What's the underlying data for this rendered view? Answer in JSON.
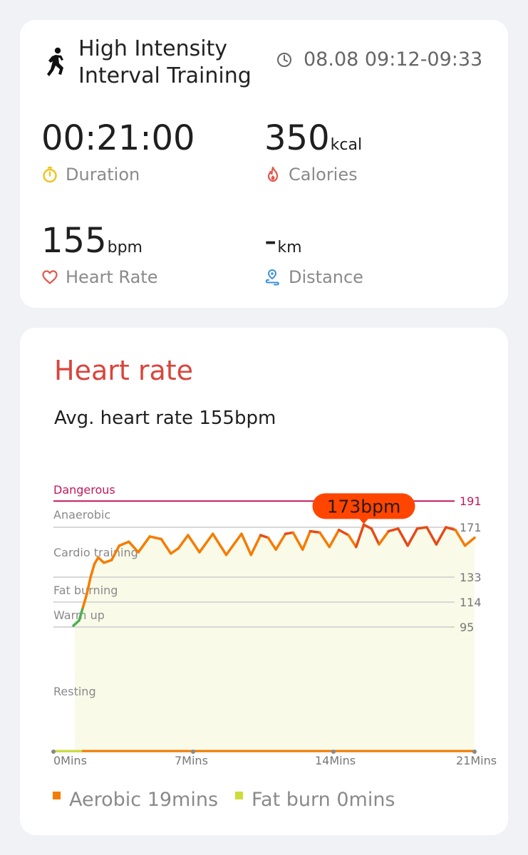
{
  "workout": {
    "title_line1": "High Intensity",
    "title_line2": "Interval Training",
    "icon": "person-running-icon",
    "time_icon": "clock-icon",
    "time_range": "08.08 09:12-09:33"
  },
  "stats": {
    "duration": {
      "value": "00:21:00",
      "unit": "",
      "label": "Duration",
      "icon": "stopwatch-icon",
      "color": "#f2c21b"
    },
    "calories": {
      "value": "350",
      "unit": "kcal",
      "label": "Calories",
      "icon": "flame-icon",
      "color": "#e2574c"
    },
    "heart_rate": {
      "value": "155",
      "unit": "bpm",
      "label": "Heart Rate",
      "icon": "heart-icon",
      "color": "#e2574c"
    },
    "distance": {
      "value": "-",
      "unit": "km",
      "label": "Distance",
      "icon": "route-pin-icon",
      "color": "#3d8fe0"
    }
  },
  "heart_rate_section": {
    "title": "Heart rate",
    "title_color": "#d9453c",
    "avg_text": "Avg. heart rate 155bpm",
    "peak_label": "173bpm",
    "peak_color": "#ff4500"
  },
  "legend": [
    {
      "label": "Aerobic 19mins",
      "color": "#f57c00"
    },
    {
      "label": "Fat burn 0mins",
      "color": "#cddc39"
    }
  ],
  "chart_data": {
    "type": "line",
    "x_unit": "minutes",
    "xlim": [
      0,
      21
    ],
    "ylim": [
      0,
      196
    ],
    "x_tick_labels": [
      "0Mins",
      "7Mins",
      "14Mins",
      "21Mins"
    ],
    "x_tick_values": [
      0,
      7,
      14,
      21
    ],
    "zones": [
      {
        "name": "Dangerous",
        "threshold": 191,
        "color": "#c2185b"
      },
      {
        "name": "Anaerobic",
        "threshold": 171,
        "color": "#cccccc"
      },
      {
        "name": "Cardio training",
        "threshold": 133,
        "color": "#cccccc"
      },
      {
        "name": "Fat burning",
        "threshold": 114,
        "color": "#cccccc"
      },
      {
        "name": "Warm up",
        "threshold": 95,
        "color": "#cccccc"
      },
      {
        "name": "Resting",
        "threshold": null,
        "color": "#cccccc"
      }
    ],
    "y_tick_labels": [
      "191",
      "171",
      "133",
      "114",
      "95"
    ],
    "series": [
      {
        "color_low": "#4caf50",
        "color_high": "#f57c00",
        "color_peak": "#e64a19",
        "fill": "#f9fae8",
        "x": [
          0.0,
          0.3,
          0.5,
          0.7,
          0.9,
          1.1,
          1.3,
          1.6,
          2.0,
          2.4,
          2.9,
          3.4,
          4.0,
          4.6,
          5.1,
          5.5,
          6.0,
          6.6,
          7.3,
          8.0,
          8.8,
          9.3,
          9.8,
          10.2,
          10.6,
          11.1,
          11.5,
          12.0,
          12.4,
          12.9,
          13.4,
          13.9,
          14.4,
          14.8,
          15.2,
          15.6,
          16.0,
          16.5,
          17.0,
          17.5,
          18.0,
          18.5,
          19.0,
          19.5,
          20.0,
          20.5,
          21.0
        ],
        "y": [
          96,
          100,
          110,
          120,
          133,
          143,
          148,
          144,
          146,
          157,
          160,
          152,
          164,
          162,
          151,
          155,
          165,
          152,
          166,
          150,
          166,
          150,
          165,
          163,
          154,
          166,
          167,
          154,
          168,
          167,
          156,
          169,
          165,
          156,
          173,
          170,
          158,
          168,
          170,
          157,
          170,
          171,
          158,
          171,
          169,
          157,
          163
        ]
      }
    ]
  }
}
